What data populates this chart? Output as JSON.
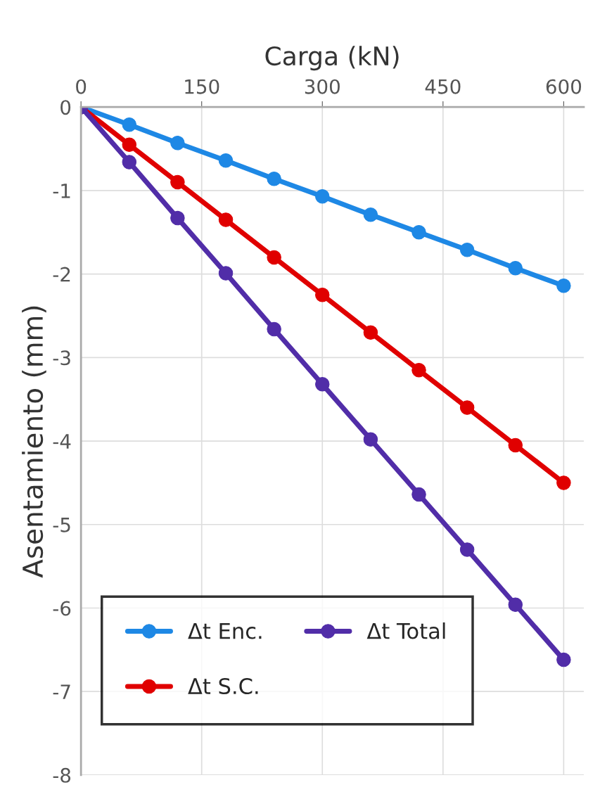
{
  "chart_data": {
    "type": "line",
    "xlabel": "Carga (kN)",
    "ylabel": "Asentamiento (mm)",
    "x": [
      0,
      60,
      120,
      180,
      240,
      300,
      360,
      420,
      480,
      540,
      600
    ],
    "series": [
      {
        "name": "Δt Enc.",
        "color": "#1e88e5",
        "values": [
          0,
          -0.21,
          -0.43,
          -0.64,
          -0.86,
          -1.07,
          -1.29,
          -1.5,
          -1.71,
          -1.93,
          -2.14
        ]
      },
      {
        "name": "Δt S.C.",
        "color": "#e00000",
        "values": [
          0,
          -0.45,
          -0.9,
          -1.35,
          -1.8,
          -2.25,
          -2.7,
          -3.15,
          -3.6,
          -4.05,
          -4.5
        ]
      },
      {
        "name": "Δt Total",
        "color": "#512da8",
        "values": [
          0,
          -0.66,
          -1.33,
          -1.99,
          -2.66,
          -3.32,
          -3.98,
          -4.64,
          -5.3,
          -5.96,
          -6.62
        ]
      }
    ],
    "xlim": [
      0,
      625
    ],
    "xticks": [
      0,
      150,
      300,
      450,
      600
    ],
    "ylim": [
      -8,
      0
    ],
    "yticks": [
      0,
      -1,
      -2,
      -3,
      -4,
      -5,
      -6,
      -7,
      -8
    ],
    "grid": true,
    "legend": "bottom left",
    "marker": "circle",
    "line_style": "solid"
  }
}
